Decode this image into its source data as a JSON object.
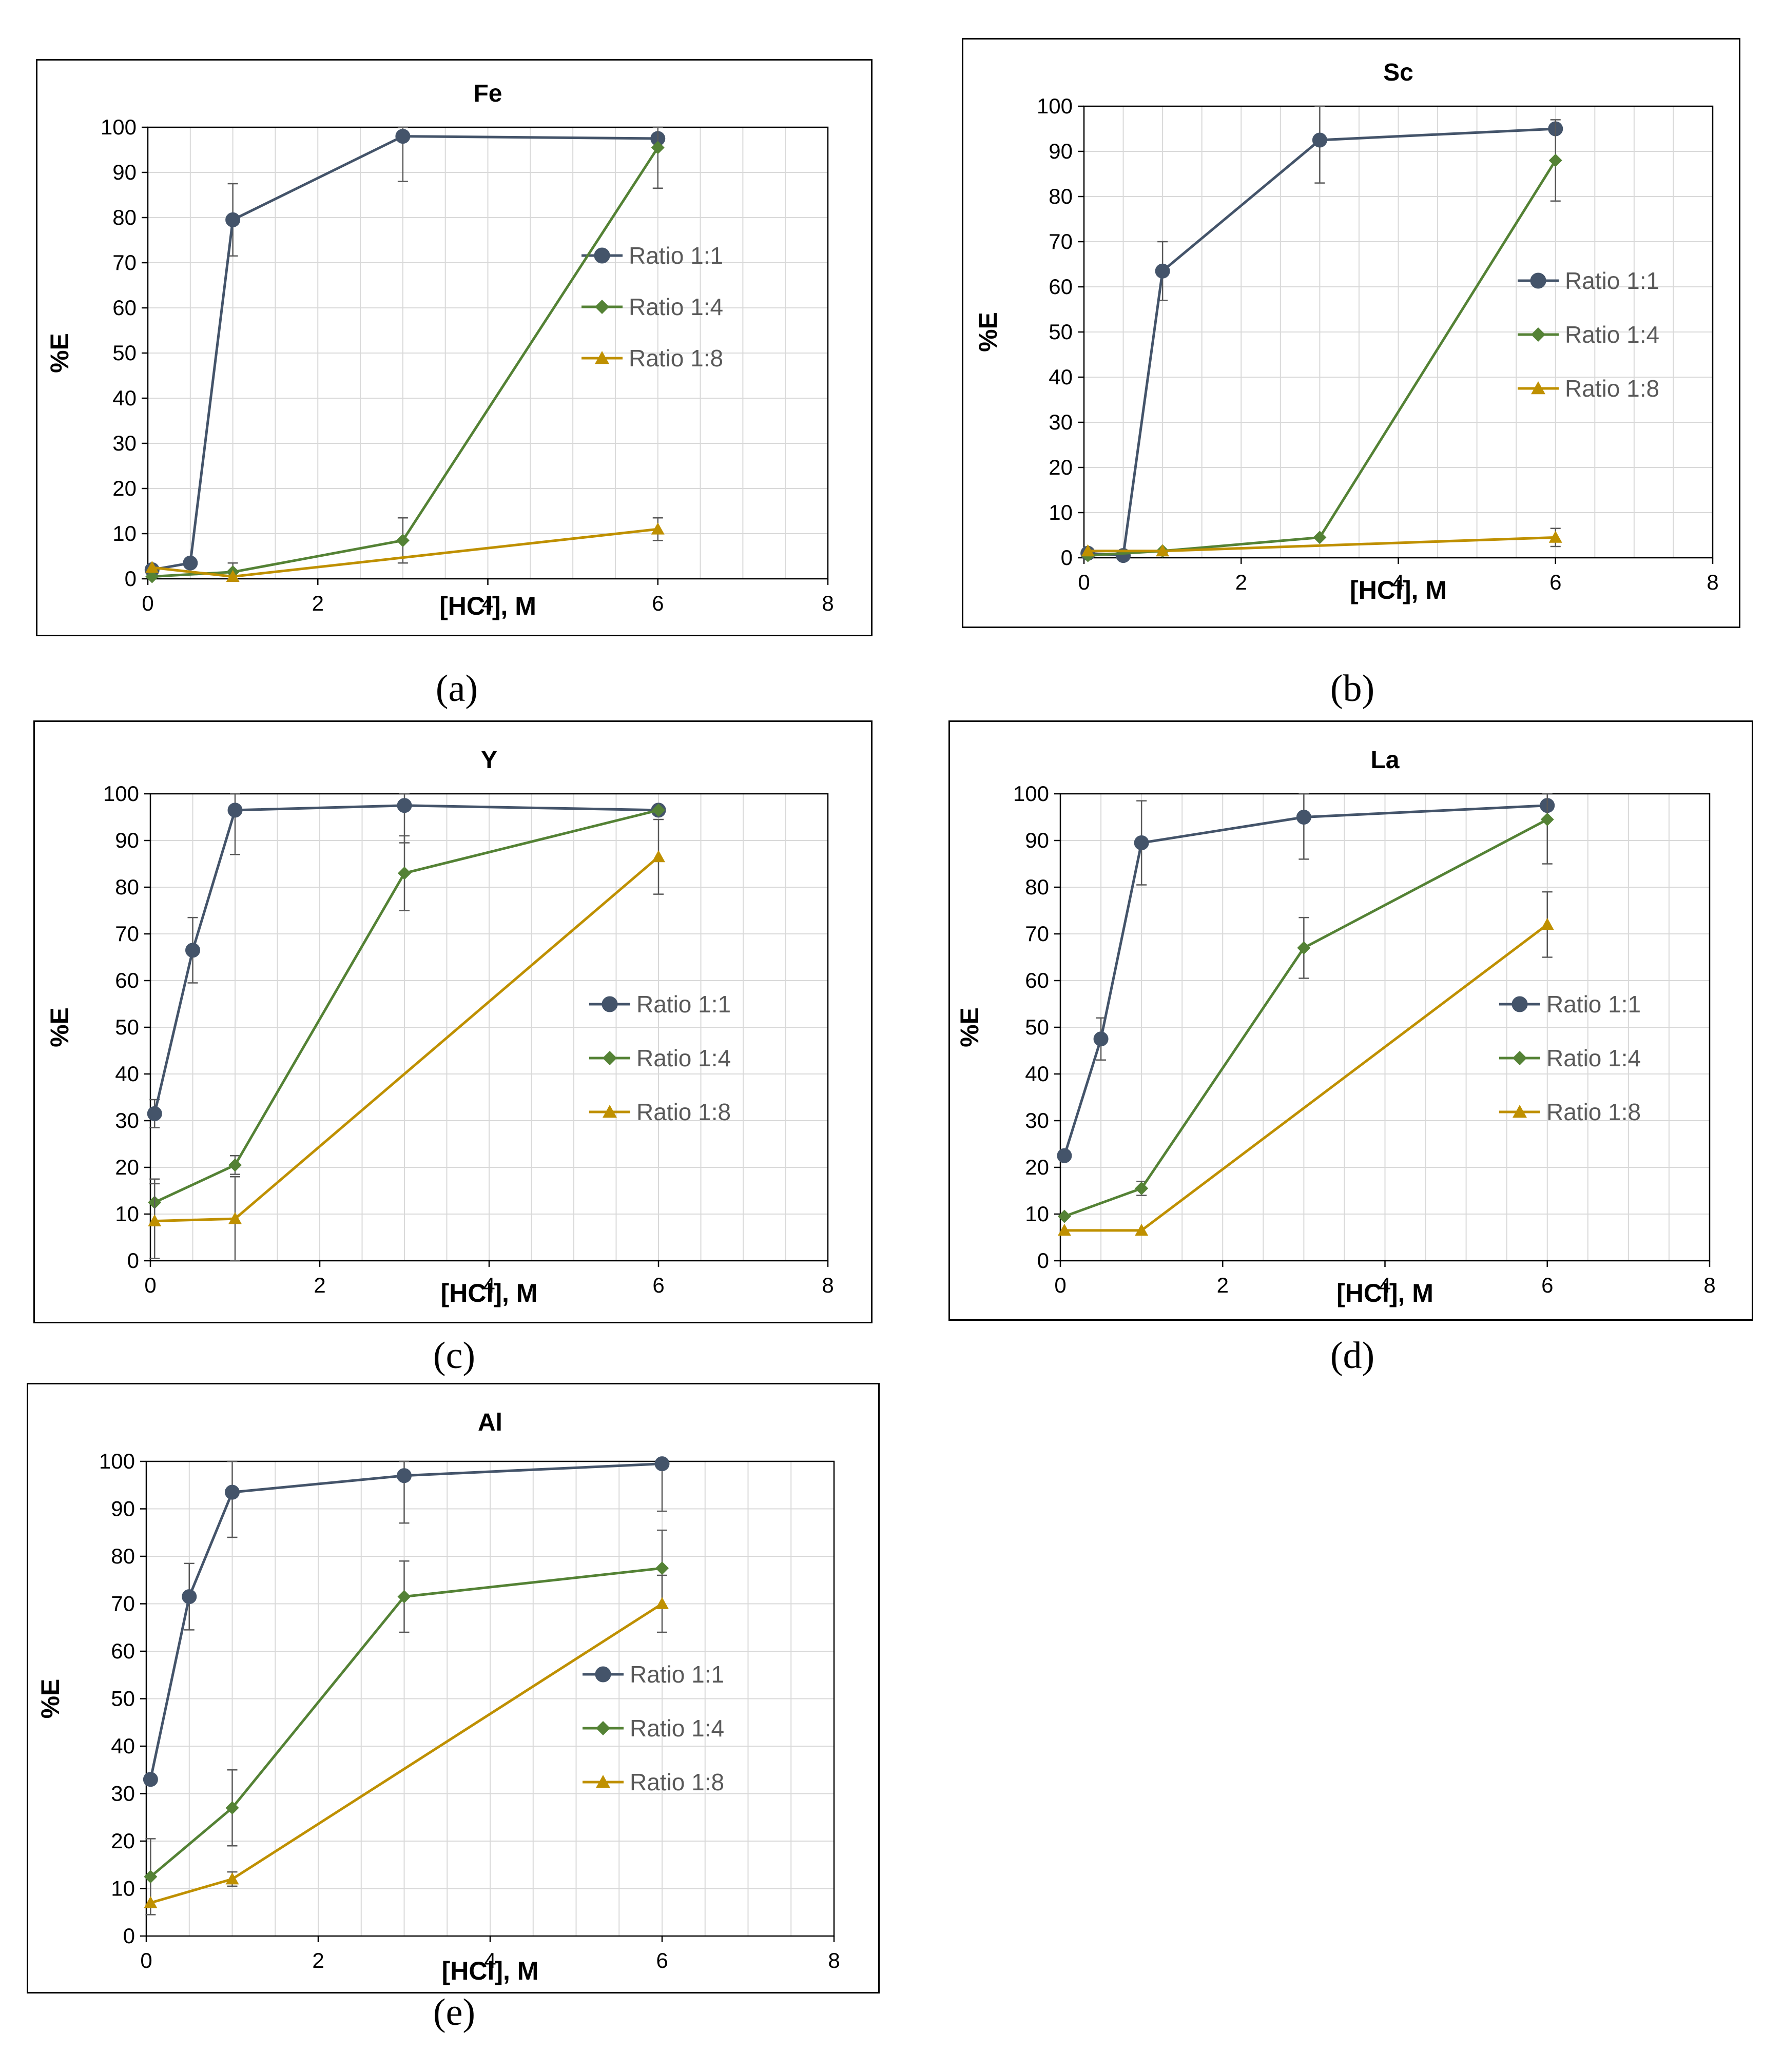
{
  "colors": {
    "ratio_1_1": "#44546A",
    "ratio_1_4": "#548235",
    "ratio_1_8": "#BF9000",
    "grid": "#D9D9D9",
    "error_bar": "#595959"
  },
  "chart_data": [
    {
      "type": "line",
      "title": "Fe",
      "caption": "(a)",
      "xlabel": "[HCl], M",
      "ylabel": "%E",
      "xlim": [
        0,
        8
      ],
      "ylim": [
        0,
        100
      ],
      "xticks": [
        "0",
        "2",
        "4",
        "6",
        "8"
      ],
      "yticks": [
        "0",
        "10",
        "20",
        "30",
        "40",
        "50",
        "60",
        "70",
        "80",
        "90",
        "100"
      ],
      "grid": true,
      "legend_position": "right",
      "series": [
        {
          "name": "Ratio 1:1",
          "marker": "circle",
          "x": [
            0.05,
            0.5,
            1,
            3,
            6
          ],
          "y": [
            2,
            3.5,
            79.5,
            98,
            97.5
          ],
          "err": [
            0,
            0,
            8,
            10,
            0
          ]
        },
        {
          "name": "Ratio 1:4",
          "marker": "diamond",
          "x": [
            0.05,
            1,
            3,
            6
          ],
          "y": [
            0.5,
            1.5,
            8.5,
            95.5
          ],
          "err": [
            0,
            2,
            5,
            9
          ]
        },
        {
          "name": "Ratio 1:8",
          "marker": "triangle",
          "x": [
            0.05,
            1,
            6
          ],
          "y": [
            2.5,
            0.5,
            11
          ],
          "err": [
            0,
            0,
            2.5
          ]
        }
      ]
    },
    {
      "type": "line",
      "title": "Sc",
      "caption": "(b)",
      "xlabel": "[HCl], M",
      "ylabel": "%E",
      "xlim": [
        0,
        8
      ],
      "ylim": [
        0,
        100
      ],
      "xticks": [
        "0",
        "2",
        "4",
        "6",
        "8"
      ],
      "yticks": [
        "0",
        "10",
        "20",
        "30",
        "40",
        "50",
        "60",
        "70",
        "80",
        "90",
        "100"
      ],
      "grid": true,
      "legend_position": "right",
      "series": [
        {
          "name": "Ratio 1:1",
          "marker": "circle",
          "x": [
            0.05,
            0.5,
            1,
            3,
            6
          ],
          "y": [
            1,
            0.5,
            63.5,
            92.5,
            95
          ],
          "err": [
            0,
            0,
            6.5,
            9.5,
            0
          ]
        },
        {
          "name": "Ratio 1:4",
          "marker": "diamond",
          "x": [
            0.05,
            1,
            3,
            6
          ],
          "y": [
            0.5,
            1.5,
            4.5,
            88
          ],
          "err": [
            0,
            0,
            0,
            9
          ]
        },
        {
          "name": "Ratio 1:8",
          "marker": "triangle",
          "x": [
            0.05,
            1,
            6
          ],
          "y": [
            1.5,
            1.5,
            4.5
          ],
          "err": [
            0,
            0,
            2
          ]
        }
      ]
    },
    {
      "type": "line",
      "title": "Y",
      "caption": "(c)",
      "xlabel": "[HCl], M",
      "ylabel": "%E",
      "xlim": [
        0,
        8
      ],
      "ylim": [
        0,
        100
      ],
      "xticks": [
        "0",
        "2",
        "4",
        "6",
        "8"
      ],
      "yticks": [
        "0",
        "10",
        "20",
        "30",
        "40",
        "50",
        "60",
        "70",
        "80",
        "90",
        "100"
      ],
      "grid": true,
      "legend_position": "right",
      "series": [
        {
          "name": "Ratio 1:1",
          "marker": "circle",
          "x": [
            0.05,
            0.5,
            1,
            3,
            6
          ],
          "y": [
            31.5,
            66.5,
            96.5,
            97.5,
            96.5
          ],
          "err": [
            3,
            7,
            9.5,
            8,
            0
          ]
        },
        {
          "name": "Ratio 1:4",
          "marker": "diamond",
          "x": [
            0.05,
            1,
            3,
            6
          ],
          "y": [
            12.5,
            20.5,
            83,
            96.5
          ],
          "err": [
            5,
            2,
            8,
            0
          ]
        },
        {
          "name": "Ratio 1:8",
          "marker": "triangle",
          "x": [
            0.05,
            1,
            6
          ],
          "y": [
            8.5,
            9,
            86.5
          ],
          "err": [
            8,
            9,
            8
          ]
        }
      ]
    },
    {
      "type": "line",
      "title": "La",
      "caption": "(d)",
      "xlabel": "[HCl], M",
      "ylabel": "%E",
      "xlim": [
        0,
        8
      ],
      "ylim": [
        0,
        100
      ],
      "xticks": [
        "0",
        "2",
        "4",
        "6",
        "8"
      ],
      "yticks": [
        "0",
        "10",
        "20",
        "30",
        "40",
        "50",
        "60",
        "70",
        "80",
        "90",
        "100"
      ],
      "grid": true,
      "legend_position": "right",
      "series": [
        {
          "name": "Ratio 1:1",
          "marker": "circle",
          "x": [
            0.05,
            0.5,
            1,
            3,
            6
          ],
          "y": [
            22.5,
            47.5,
            89.5,
            95,
            97.5
          ],
          "err": [
            0,
            4.5,
            9,
            9,
            0
          ]
        },
        {
          "name": "Ratio 1:4",
          "marker": "diamond",
          "x": [
            0.05,
            1,
            3,
            6
          ],
          "y": [
            9.5,
            15.5,
            67,
            94.5
          ],
          "err": [
            0,
            1.5,
            6.5,
            9.5
          ]
        },
        {
          "name": "Ratio 1:8",
          "marker": "triangle",
          "x": [
            0.05,
            1,
            6
          ],
          "y": [
            6.5,
            6.5,
            72
          ],
          "err": [
            0,
            0,
            7
          ]
        }
      ]
    },
    {
      "type": "line",
      "title": "Al",
      "caption": "(e)",
      "xlabel": "[HCl], M",
      "ylabel": "%E",
      "xlim": [
        0,
        8
      ],
      "ylim": [
        0,
        100
      ],
      "xticks": [
        "0",
        "2",
        "4",
        "6",
        "8"
      ],
      "yticks": [
        "0",
        "10",
        "20",
        "30",
        "40",
        "50",
        "60",
        "70",
        "80",
        "90",
        "100"
      ],
      "grid": true,
      "legend_position": "right",
      "series": [
        {
          "name": "Ratio 1:1",
          "marker": "circle",
          "x": [
            0.05,
            0.5,
            1,
            3,
            6
          ],
          "y": [
            33,
            71.5,
            93.5,
            97,
            99.5
          ],
          "err": [
            0,
            7,
            9.5,
            10,
            10
          ]
        },
        {
          "name": "Ratio 1:4",
          "marker": "diamond",
          "x": [
            0.05,
            1,
            3,
            6
          ],
          "y": [
            12.5,
            27,
            71.5,
            77.5
          ],
          "err": [
            8,
            8,
            7.5,
            8
          ]
        },
        {
          "name": "Ratio 1:8",
          "marker": "triangle",
          "x": [
            0.05,
            1,
            6
          ],
          "y": [
            7,
            12,
            70
          ],
          "err": [
            0,
            1.5,
            6
          ]
        }
      ]
    }
  ]
}
